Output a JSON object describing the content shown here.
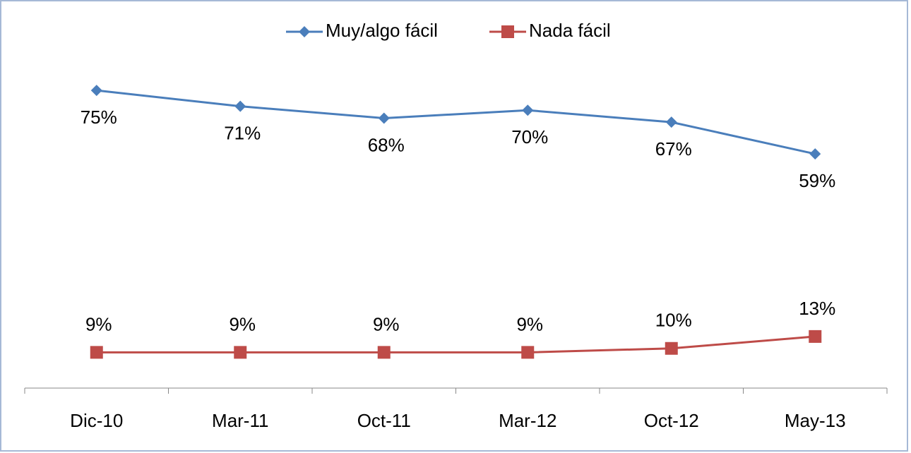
{
  "chart_data": {
    "type": "line",
    "categories": [
      "Dic-10",
      "Mar-11",
      "Oct-11",
      "Mar-12",
      "Oct-12",
      "May-13"
    ],
    "series": [
      {
        "name": "Muy/algo fácil",
        "color": "#4a7ebb",
        "marker": "diamond",
        "values": [
          75,
          71,
          68,
          70,
          67,
          59
        ],
        "value_labels": [
          "75%",
          "71%",
          "68%",
          "70%",
          "67%",
          "59%"
        ]
      },
      {
        "name": "Nada fácil",
        "color": "#be4b48",
        "marker": "square",
        "values": [
          9,
          9,
          9,
          9,
          10,
          13
        ],
        "value_labels": [
          "9%",
          "9%",
          "9%",
          "9%",
          "10%",
          "13%"
        ]
      }
    ],
    "ylim": [
      0,
      80
    ],
    "legend": "top"
  }
}
